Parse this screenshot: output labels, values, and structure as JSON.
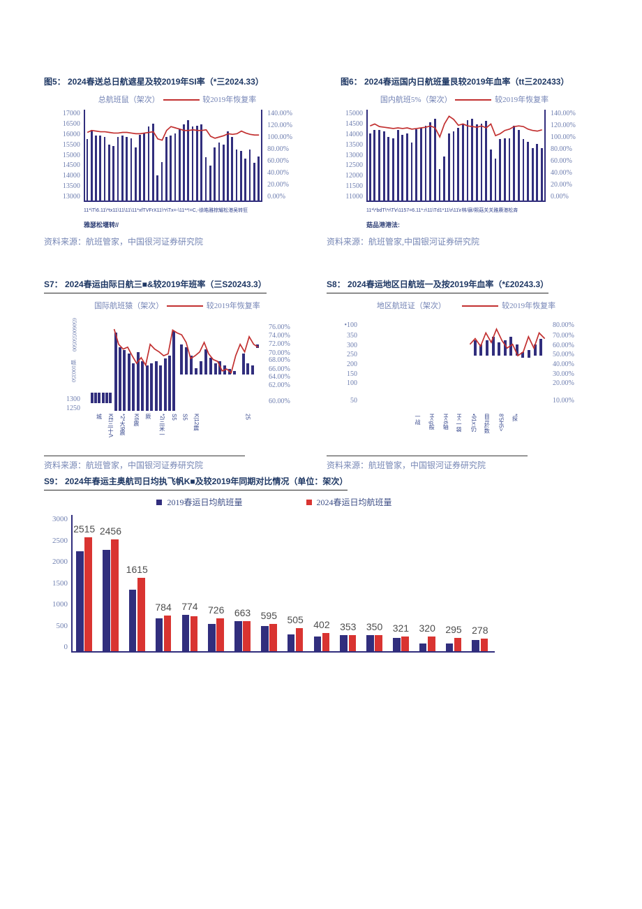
{
  "page": {
    "background": "#ffffff"
  },
  "colors": {
    "bar_navy": "#312E7D",
    "line_red": "#C23030",
    "bar_red_2024": "#D93431",
    "title_navy": "#1F3864",
    "axis_text": "#6F7FB0",
    "source_text": "#7787B5",
    "value_label_grey": "#4D4D4D"
  },
  "chart_data": [
    {
      "id": "fig5",
      "type": "bar",
      "title": "图5： 2024春送总日航遮星及较2019年SI率（*三2024.33）",
      "legend": [
        {
          "label": "总航班鼠（架次）",
          "color": "#312E7D",
          "marker": "bar"
        },
        {
          "label": "较2019年恢复率",
          "color": "#C23030",
          "marker": "line"
        }
      ],
      "y_left_ticks": [
        "17000",
        "16500",
        "16000",
        "15500",
        "15000",
        "14500",
        "14000",
        "13500",
        "13000"
      ],
      "y_right_ticks": [
        "140.00%",
        "120.00%",
        "100.00%",
        "80.00%",
        "60.00%",
        "40.00%",
        "20.00%",
        "0.00%"
      ],
      "ylim": [
        13000,
        17000
      ],
      "y2lim": [
        0,
        140
      ],
      "values": [
        15700,
        16100,
        15850,
        15850,
        15800,
        15450,
        15400,
        15800,
        15850,
        15800,
        15750,
        15350,
        15900,
        15950,
        16250,
        16400,
        14100,
        14700,
        15800,
        15850,
        15950,
        16150,
        16350,
        16550,
        16250,
        16300,
        16350,
        14900,
        14550,
        15350,
        15550,
        15450,
        16050,
        15800,
        15250,
        15200,
        14850,
        15250,
        14650,
        14950
      ],
      "line_values": [
        105,
        108,
        107,
        106,
        106,
        105,
        104,
        104,
        105,
        105,
        104,
        103,
        103,
        104,
        105,
        106,
        95,
        93,
        108,
        114,
        112,
        110,
        108,
        108,
        109,
        108,
        108,
        109,
        99,
        96,
        98,
        100,
        103,
        102,
        103,
        107,
        104,
        102,
        101,
        101
      ],
      "x_caption": "11*\\T\\6.11\\*tx11\\11\\11\\11*xfTVFrX11\\*r\\Tx=-\\11**!=C,-徐皓雅棕耀松港吴转狂",
      "x_caption2": "雅瑟松堰转//",
      "source": "资料来源：航班管家，中国很河证券研究院"
    },
    {
      "id": "fig6",
      "type": "bar",
      "title": "图6： 2024春运国内日航班量艮较2019年血率（tt三202433）",
      "legend": [
        {
          "label": "国内航班5%（架次）",
          "color": "#312E7D",
          "marker": "bar"
        },
        {
          "label": "较2019年恢复率",
          "color": "#C23030",
          "marker": "line"
        }
      ],
      "y_left_ticks": [
        "15000",
        "14500",
        "14000",
        "13500",
        "13000",
        "12500",
        "12000",
        "11500",
        "11000"
      ],
      "y_right_ticks": [
        "140.00%",
        "120.00%",
        "100.00%",
        "80.00%",
        "60.00%",
        "40.00%",
        "20.00%",
        "0.00%"
      ],
      "ylim": [
        11000,
        15000
      ],
      "y2lim": [
        0,
        140
      ],
      "values": [
        13950,
        14100,
        14100,
        14050,
        13800,
        13750,
        14100,
        13900,
        13950,
        13550,
        14150,
        14200,
        14300,
        14450,
        14600,
        12400,
        12950,
        13950,
        14050,
        14200,
        14400,
        14550,
        14600,
        14350,
        14400,
        14500,
        13250,
        12850,
        13700,
        13750,
        13750,
        14300,
        14100,
        13700,
        13600,
        13300,
        13500,
        13300
      ],
      "line_values": [
        115,
        118,
        114,
        113,
        112,
        111,
        112,
        111,
        112,
        110,
        111,
        112,
        113,
        115,
        112,
        98,
        118,
        130,
        125,
        116,
        118,
        115,
        114,
        113,
        115,
        112,
        118,
        100,
        103,
        108,
        110,
        114,
        115,
        114,
        110,
        108,
        107,
        109
      ],
      "x_caption": "11*\\*bdT\\*r\\T\\r\\1157=6.11*:r\\11\\Td1*11\\r\\11\\r林/寐/熙菇关关雅赓港松斉",
      "x_caption2": "菇品港港法:",
      "source": "资料来源：航班管家,中国银河证券研究院"
    },
    {
      "id": "s7",
      "type": "bar",
      "title": "S7： 2024春运由际日航三■&较2019年班率（三S20243.3）",
      "legend": [
        {
          "label": "国际航班猿（架次）",
          "color": "#312E7D",
          "marker": "bar"
        },
        {
          "label": "较2019年恢复率",
          "color": "#C23030",
          "marker": "line"
        }
      ],
      "y_left_abs": [
        {
          "text": "650600550500",
          "f": 0.02,
          "rot": true
        },
        {
          "text": "哌100350",
          "f": 0.46,
          "rot": true
        },
        {
          "text": "1300",
          "f": 0.84
        },
        {
          "text": "1250",
          "f": 0.935
        }
      ],
      "y_right_abs": [
        {
          "text": "76.00%",
          "f": 0.08
        },
        {
          "text": "74.00%",
          "f": 0.17
        },
        {
          "text": "72.00%",
          "f": 0.26
        },
        {
          "text": "70.00%",
          "f": 0.35
        },
        {
          "text": "68.00%",
          "f": 0.43
        },
        {
          "text": "66.00%",
          "f": 0.52
        },
        {
          "text": "64.00%",
          "f": 0.6
        },
        {
          "text": "62.00%",
          "f": 0.69
        },
        {
          "text": "60.00%",
          "f": 0.86
        }
      ],
      "bars_frac": [
        {
          "x": 0.035,
          "t": 0.81,
          "b": 0.92
        },
        {
          "x": 0.055,
          "t": 0.81,
          "b": 0.92
        },
        {
          "x": 0.075,
          "t": 0.81,
          "b": 0.92
        },
        {
          "x": 0.095,
          "t": 0.81,
          "b": 0.92
        },
        {
          "x": 0.115,
          "t": 0.81,
          "b": 0.92
        },
        {
          "x": 0.135,
          "t": 0.81,
          "b": 0.92
        },
        {
          "x": 0.165,
          "t": 0.18,
          "b": 1.0
        },
        {
          "x": 0.19,
          "t": 0.33,
          "b": 1.0
        },
        {
          "x": 0.215,
          "t": 0.36,
          "b": 1.0
        },
        {
          "x": 0.24,
          "t": 0.4,
          "b": 1.0
        },
        {
          "x": 0.265,
          "t": 0.5,
          "b": 1.0
        },
        {
          "x": 0.29,
          "t": 0.38,
          "b": 1.0
        },
        {
          "x": 0.315,
          "t": 0.48,
          "b": 1.0
        },
        {
          "x": 0.34,
          "t": 0.52,
          "b": 1.0
        },
        {
          "x": 0.365,
          "t": 0.5,
          "b": 1.0
        },
        {
          "x": 0.39,
          "t": 0.48,
          "b": 1.0
        },
        {
          "x": 0.415,
          "t": 0.52,
          "b": 1.0
        },
        {
          "x": 0.44,
          "t": 0.45,
          "b": 1.0
        },
        {
          "x": 0.465,
          "t": 0.42,
          "b": 1.0
        },
        {
          "x": 0.49,
          "t": 0.16,
          "b": 1.0
        },
        {
          "x": 0.53,
          "t": 0.3,
          "b": 0.62
        },
        {
          "x": 0.557,
          "t": 0.33,
          "b": 0.62
        },
        {
          "x": 0.584,
          "t": 0.42,
          "b": 0.62
        },
        {
          "x": 0.611,
          "t": 0.55,
          "b": 0.62
        },
        {
          "x": 0.638,
          "t": 0.48,
          "b": 0.62
        },
        {
          "x": 0.665,
          "t": 0.35,
          "b": 0.62
        },
        {
          "x": 0.692,
          "t": 0.44,
          "b": 0.62
        },
        {
          "x": 0.719,
          "t": 0.5,
          "b": 0.62
        },
        {
          "x": 0.746,
          "t": 0.48,
          "b": 0.62
        },
        {
          "x": 0.773,
          "t": 0.52,
          "b": 0.62
        },
        {
          "x": 0.8,
          "t": 0.56,
          "b": 0.62
        },
        {
          "x": 0.827,
          "t": 0.58,
          "b": 0.62
        },
        {
          "x": 0.875,
          "t": 0.4,
          "b": 0.62
        },
        {
          "x": 0.9,
          "t": 0.5,
          "b": 0.62
        },
        {
          "x": 0.925,
          "t": 0.52,
          "b": 0.62
        },
        {
          "x": 0.955,
          "t": 0.3,
          "b": 0.34
        }
      ],
      "line_frac": {
        "x": [
          0.165,
          0.19,
          0.215,
          0.24,
          0.265,
          0.29,
          0.315,
          0.34,
          0.365,
          0.39,
          0.415,
          0.44,
          0.465,
          0.49,
          0.515,
          0.54,
          0.565,
          0.59,
          0.615,
          0.64,
          0.665,
          0.69,
          0.715,
          0.74,
          0.765,
          0.79,
          0.815,
          0.84,
          0.865,
          0.89,
          0.915,
          0.94,
          0.965
        ],
        "y": [
          0.14,
          0.3,
          0.35,
          0.33,
          0.42,
          0.5,
          0.44,
          0.52,
          0.3,
          0.35,
          0.38,
          0.42,
          0.4,
          0.15,
          0.18,
          0.2,
          0.28,
          0.45,
          0.42,
          0.38,
          0.28,
          0.4,
          0.46,
          0.48,
          0.58,
          0.56,
          0.6,
          0.42,
          0.3,
          0.38,
          0.22,
          0.3,
          0.33
        ]
      },
      "x_labels": [
        {
          "text": "城",
          "f": 0.06
        },
        {
          "text": "KE三|十Λ",
          "f": 0.124
        },
        {
          "text": "*2*大9震",
          "f": 0.19
        },
        {
          "text": "K6震",
          "f": 0.267
        },
        {
          "text": "厥",
          "f": 0.333
        },
        {
          "text": "*2三|米一",
          "f": 0.41
        },
        {
          "text": "S5",
          "f": 0.48
        },
        {
          "text": "S5",
          "f": 0.54
        },
        {
          "text": "K|12震",
          "f": 0.6
        },
        {
          "text": "25",
          "f": 0.89
        }
      ],
      "source": "资料来源：航班管家，中国银河证券研究院"
    },
    {
      "id": "s8",
      "type": "bar",
      "title": "S8： 2024春运地区日航班一及按2019年血率（*£20243.3）",
      "legend": [
        {
          "label": "地区航班证（架次）",
          "color": "#312E7D",
          "marker": "bar"
        },
        {
          "label": "较2019年恢复率",
          "color": "#C23030",
          "marker": "line"
        }
      ],
      "y_left_abs": [
        {
          "text": "•100",
          "f": 0.06
        },
        {
          "text": "350",
          "f": 0.17
        },
        {
          "text": "300",
          "f": 0.27
        },
        {
          "text": "250",
          "f": 0.37
        },
        {
          "text": "200",
          "f": 0.47
        },
        {
          "text": "150",
          "f": 0.57
        },
        {
          "text": "100",
          "f": 0.67
        },
        {
          "text": "50",
          "f": 0.85
        }
      ],
      "y_right_abs": [
        {
          "text": "80.00%",
          "f": 0.06
        },
        {
          "text": "70.00%",
          "f": 0.17
        },
        {
          "text": "60.00%",
          "f": 0.27
        },
        {
          "text": "50.00%",
          "f": 0.37
        },
        {
          "text": "40.00%",
          "f": 0.47
        },
        {
          "text": "30.00%",
          "f": 0.57
        },
        {
          "text": "20.00%",
          "f": 0.67
        },
        {
          "text": "10.00%",
          "f": 0.85
        }
      ],
      "bars_frac": [
        {
          "x": 0.6,
          "t": 0.26,
          "b": 0.42
        },
        {
          "x": 0.632,
          "t": 0.3,
          "b": 0.42
        },
        {
          "x": 0.664,
          "t": 0.26,
          "b": 0.42
        },
        {
          "x": 0.696,
          "t": 0.22,
          "b": 0.42
        },
        {
          "x": 0.728,
          "t": 0.28,
          "b": 0.42
        },
        {
          "x": 0.76,
          "t": 0.26,
          "b": 0.42
        },
        {
          "x": 0.792,
          "t": 0.22,
          "b": 0.42
        },
        {
          "x": 0.824,
          "t": 0.3,
          "b": 0.42
        },
        {
          "x": 0.856,
          "t": 0.38,
          "b": 0.44
        },
        {
          "x": 0.888,
          "t": 0.36,
          "b": 0.44
        },
        {
          "x": 0.92,
          "t": 0.3,
          "b": 0.42
        },
        {
          "x": 0.952,
          "t": 0.24,
          "b": 0.42
        }
      ],
      "line_frac": {
        "x": [
          0.58,
          0.608,
          0.637,
          0.665,
          0.694,
          0.722,
          0.751,
          0.779,
          0.808,
          0.836,
          0.865,
          0.893,
          0.922,
          0.95,
          0.98
        ],
        "y": [
          0.3,
          0.24,
          0.32,
          0.18,
          0.28,
          0.14,
          0.26,
          0.34,
          0.3,
          0.42,
          0.38,
          0.22,
          0.34,
          0.18,
          0.24
        ]
      },
      "x_labels": [
        {
          "text": "一战",
          "f": 0.28
        },
        {
          "text": "H<g般",
          "f": 0.355
        },
        {
          "text": "H<6轴",
          "f": 0.43
        },
        {
          "text": "H<一袋",
          "f": 0.5
        },
        {
          "text": "•91x:仍",
          "f": 0.58
        },
        {
          "text": "目II於数",
          "f": 0.65
        },
        {
          "text": "8'5H5>",
          "f": 0.73
        },
        {
          "text": "*探",
          "f": 0.8
        }
      ],
      "source": "资料来源：航班管家，中国银河证券研究院"
    },
    {
      "id": "s9",
      "type": "bar",
      "title": "S9： 2024年春运主奥航司日均执飞帆K■及较2019年同期对比情况（单位：架次）",
      "legend": [
        {
          "label": "2019春运日均航班量",
          "color": "#312E7D",
          "marker": "square"
        },
        {
          "label": "2024春运日均航班量",
          "color": "#D93431",
          "marker": "square"
        }
      ],
      "y_ticks": [
        "3000",
        "2500",
        "2000",
        "1500",
        "1000",
        "500",
        "0"
      ],
      "ylim": [
        0,
        3000
      ],
      "series": [
        {
          "name": "2019春运日均航班量",
          "values": [
            2200,
            2230,
            1350,
            730,
            800,
            600,
            660,
            560,
            370,
            330,
            350,
            360,
            300,
            170,
            165,
            240
          ]
        },
        {
          "name": "2024春运日均航班量",
          "values": [
            2515,
            2456,
            1615,
            784,
            774,
            726,
            663,
            595,
            505,
            402,
            353,
            350,
            321,
            320,
            295,
            278
          ]
        }
      ],
      "bar_labels": [
        "2515",
        "2456",
        "1615",
        "784",
        "774",
        "726",
        "663",
        "595",
        "505",
        "402",
        "353",
        "350",
        "321",
        "320",
        "295",
        "278"
      ]
    }
  ]
}
